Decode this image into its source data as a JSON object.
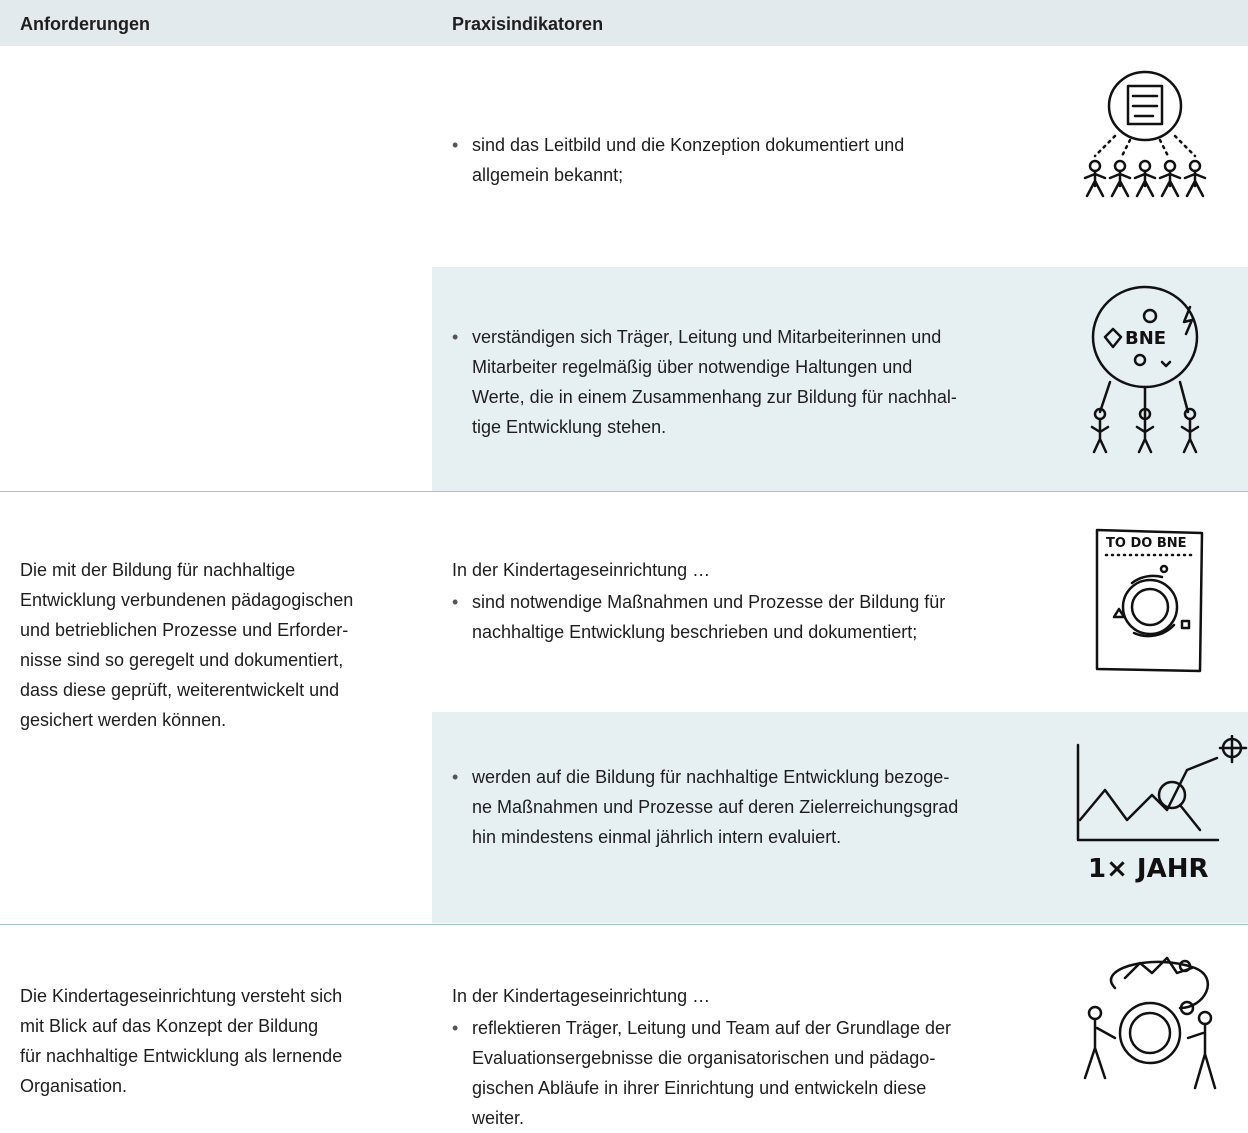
{
  "table": {
    "header": [
      "Anforderungen",
      "Praxisindikatoren"
    ],
    "rows": [
      {
        "indicators": [
          {
            "bullet": [
              "sind das Leitbild und die Konzeption dokumentiert und",
              "allgemein bekannt;"
            ]
          },
          {
            "bullet": [
              "verständigen sich Träger, Leitung und Mitarbeiterinnen und",
              "Mitarbeiter regelmäßig über notwendige Haltungen und",
              "Werte, die in einem Zusammenhang zur Bildung für nachhal-",
              "tige Entwicklung stehen."
            ]
          }
        ]
      },
      {
        "requirement": [
          "Die mit der Bildung für nachhaltige",
          "Entwicklung verbundenen pädagogischen",
          "und betrieblichen Prozesse und Erforder-",
          "nisse sind so geregelt und dokumentiert,",
          "dass diese geprüft, weiterentwickelt und",
          "gesichert werden können."
        ],
        "indicators": [
          {
            "intro": "In der Kindertageseinrichtung …",
            "bullet": [
              "sind notwendige Maßnahmen und Prozesse der Bildung für",
              "nachhaltige Entwicklung beschrieben und dokumentiert;"
            ]
          },
          {
            "bullet": [
              "werden auf die Bildung für nachhaltige Entwicklung bezoge-",
              "ne Maßnahmen und Prozesse auf deren Zielerreichungsgrad",
              "hin mindestens einmal jährlich intern evaluiert."
            ]
          }
        ]
      },
      {
        "requirement": [
          "Die Kindertageseinrichtung versteht sich",
          "mit Blick auf das Konzept der Bildung",
          "für nachhaltige Entwicklung als lernende",
          "Organisation."
        ],
        "indicators": [
          {
            "intro": "In der Kindertageseinrichtung …",
            "bullet": [
              "reflektieren Träger, Leitung und Team auf der Grundlage der",
              "Evaluationsergebnisse die organisatorischen und pädago-",
              "gischen Abläufe in ihrer Einrichtung und entwickeln diese",
              "weiter."
            ]
          }
        ]
      }
    ]
  }
}
